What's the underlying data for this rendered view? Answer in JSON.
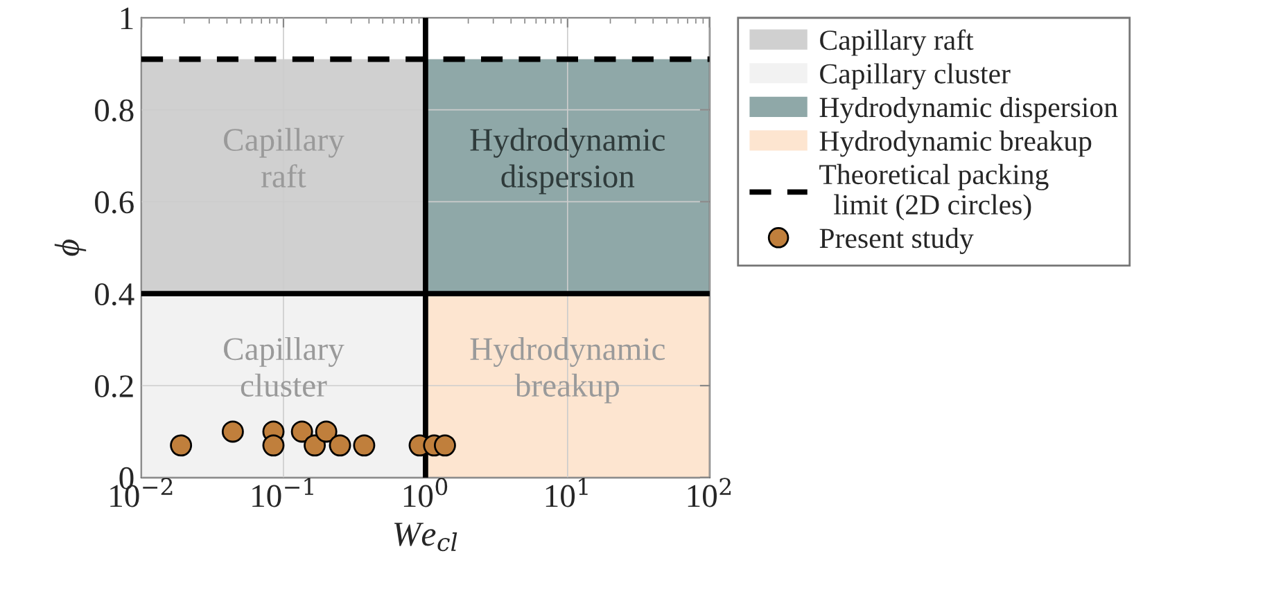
{
  "chart_data": {
    "type": "scatter",
    "xlabel": "We$_{cl}$",
    "ylabel": "ϕ",
    "log": "x",
    "xlim": [
      0.01,
      100
    ],
    "ylim": [
      0,
      1
    ],
    "xticks": [
      {
        "value": 0.01,
        "label": "10$^{−2}$"
      },
      {
        "value": 0.1,
        "label": "10$^{−1}$"
      },
      {
        "value": 1,
        "label": "10$^{0}$"
      },
      {
        "value": 10,
        "label": "10$^{1}$"
      },
      {
        "value": 100,
        "label": "10$^{2}$"
      }
    ],
    "yticks": [
      0,
      0.2,
      0.4,
      0.6,
      0.8,
      1
    ],
    "grid": true,
    "legend": "right",
    "series": [
      {
        "type": "area",
        "name": "Capillary raft",
        "color": "#d0d0d0",
        "x": [
          0.01,
          1
        ],
        "values": [
          0.91,
          0.91
        ]
      },
      {
        "type": "area",
        "name": "Capillary cluster",
        "color": "#f2f2f2",
        "x": [
          0.01,
          1
        ],
        "values": [
          0.4,
          0.4
        ]
      },
      {
        "type": "area",
        "name": "Hydrodynamic dispersion",
        "color": "#8fa8a8",
        "x": [
          1,
          100
        ],
        "values": [
          0.91,
          0.91
        ]
      },
      {
        "type": "area",
        "name": "Hydrodynamic breakup",
        "color": "#fde5d0",
        "x": [
          1,
          100
        ],
        "values": [
          0.4,
          0.4
        ]
      },
      {
        "type": "line",
        "name": "Theoretical packing\n  limit (2D circles)",
        "color": "#000000",
        "line_style": "dashed",
        "x": [
          0.01,
          100
        ],
        "values": [
          0.91,
          0.91
        ]
      },
      {
        "name": "Present study",
        "color": "#c07f3c",
        "marker": "circle",
        "x": [
          0.019,
          0.044,
          0.085,
          0.085,
          0.135,
          0.166,
          0.2,
          0.25,
          0.37,
          0.91,
          1.15,
          1.37
        ],
        "values": [
          0.07,
          0.1,
          0.1,
          0.07,
          0.1,
          0.07,
          0.1,
          0.07,
          0.07,
          0.07,
          0.07,
          0.07
        ]
      }
    ],
    "ref_lines": [
      {
        "axis": "y",
        "value": 0.4,
        "color": "#000000",
        "line_style": "solid"
      },
      {
        "axis": "x",
        "value": 1,
        "color": "#000000",
        "line_style": "solid"
      }
    ],
    "annotations": [
      "Capillary\nraft",
      "Capillary\ncluster",
      "Hydrodynamic\ndispersion",
      "Hydrodynamic\nbreakup"
    ]
  }
}
